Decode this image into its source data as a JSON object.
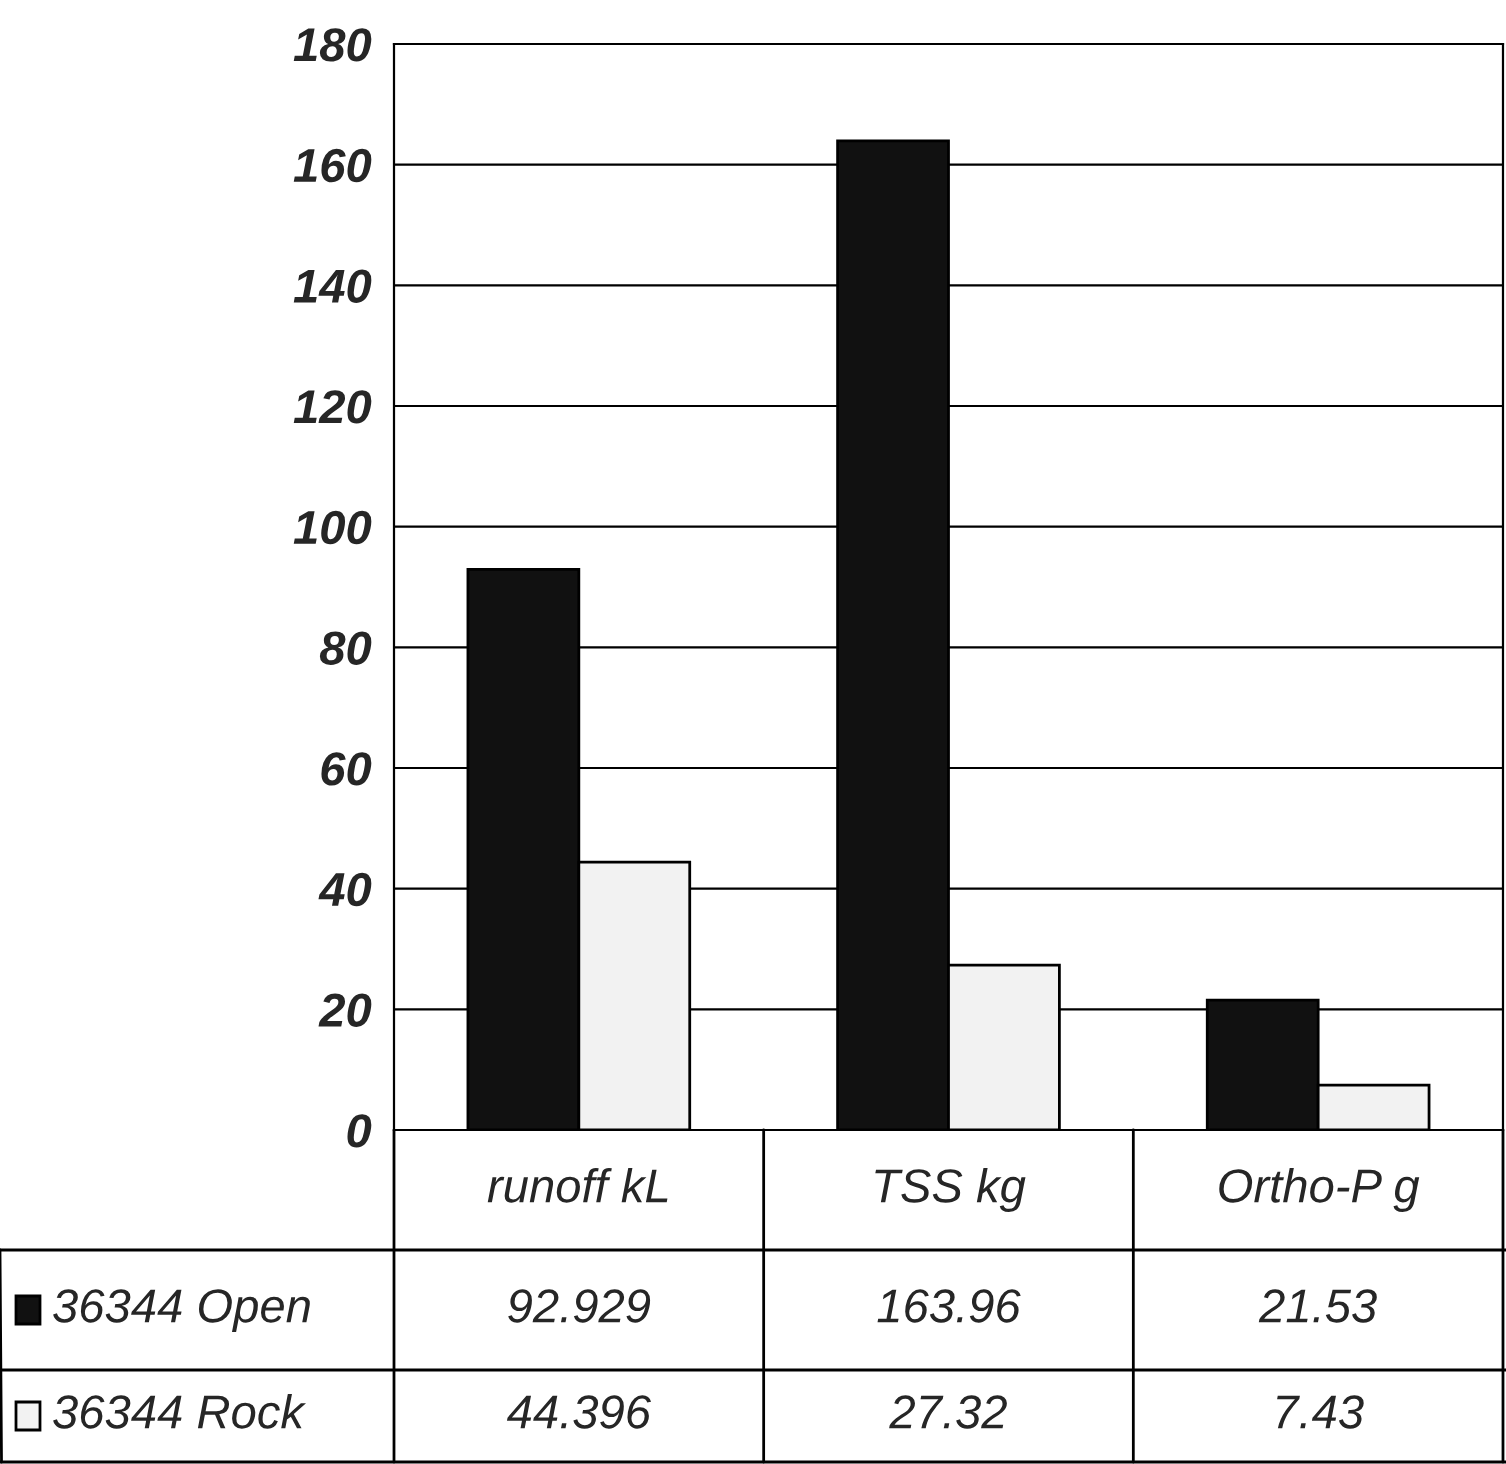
{
  "chart_data": {
    "type": "bar",
    "categories": [
      "runoff kL",
      "TSS kg",
      "Ortho-P g"
    ],
    "series": [
      {
        "name": "36344 Open",
        "color": "#111111",
        "values": [
          92.929,
          163.96,
          21.53
        ]
      },
      {
        "name": "36344 Rock",
        "color": "#f2f2f2",
        "values": [
          44.396,
          27.32,
          7.43
        ]
      }
    ],
    "ylim": [
      0,
      180
    ],
    "yticks": [
      0,
      20,
      40,
      60,
      80,
      100,
      120,
      140,
      160,
      180
    ],
    "grid": "y",
    "legend": "bottom left",
    "data_labels": true
  }
}
